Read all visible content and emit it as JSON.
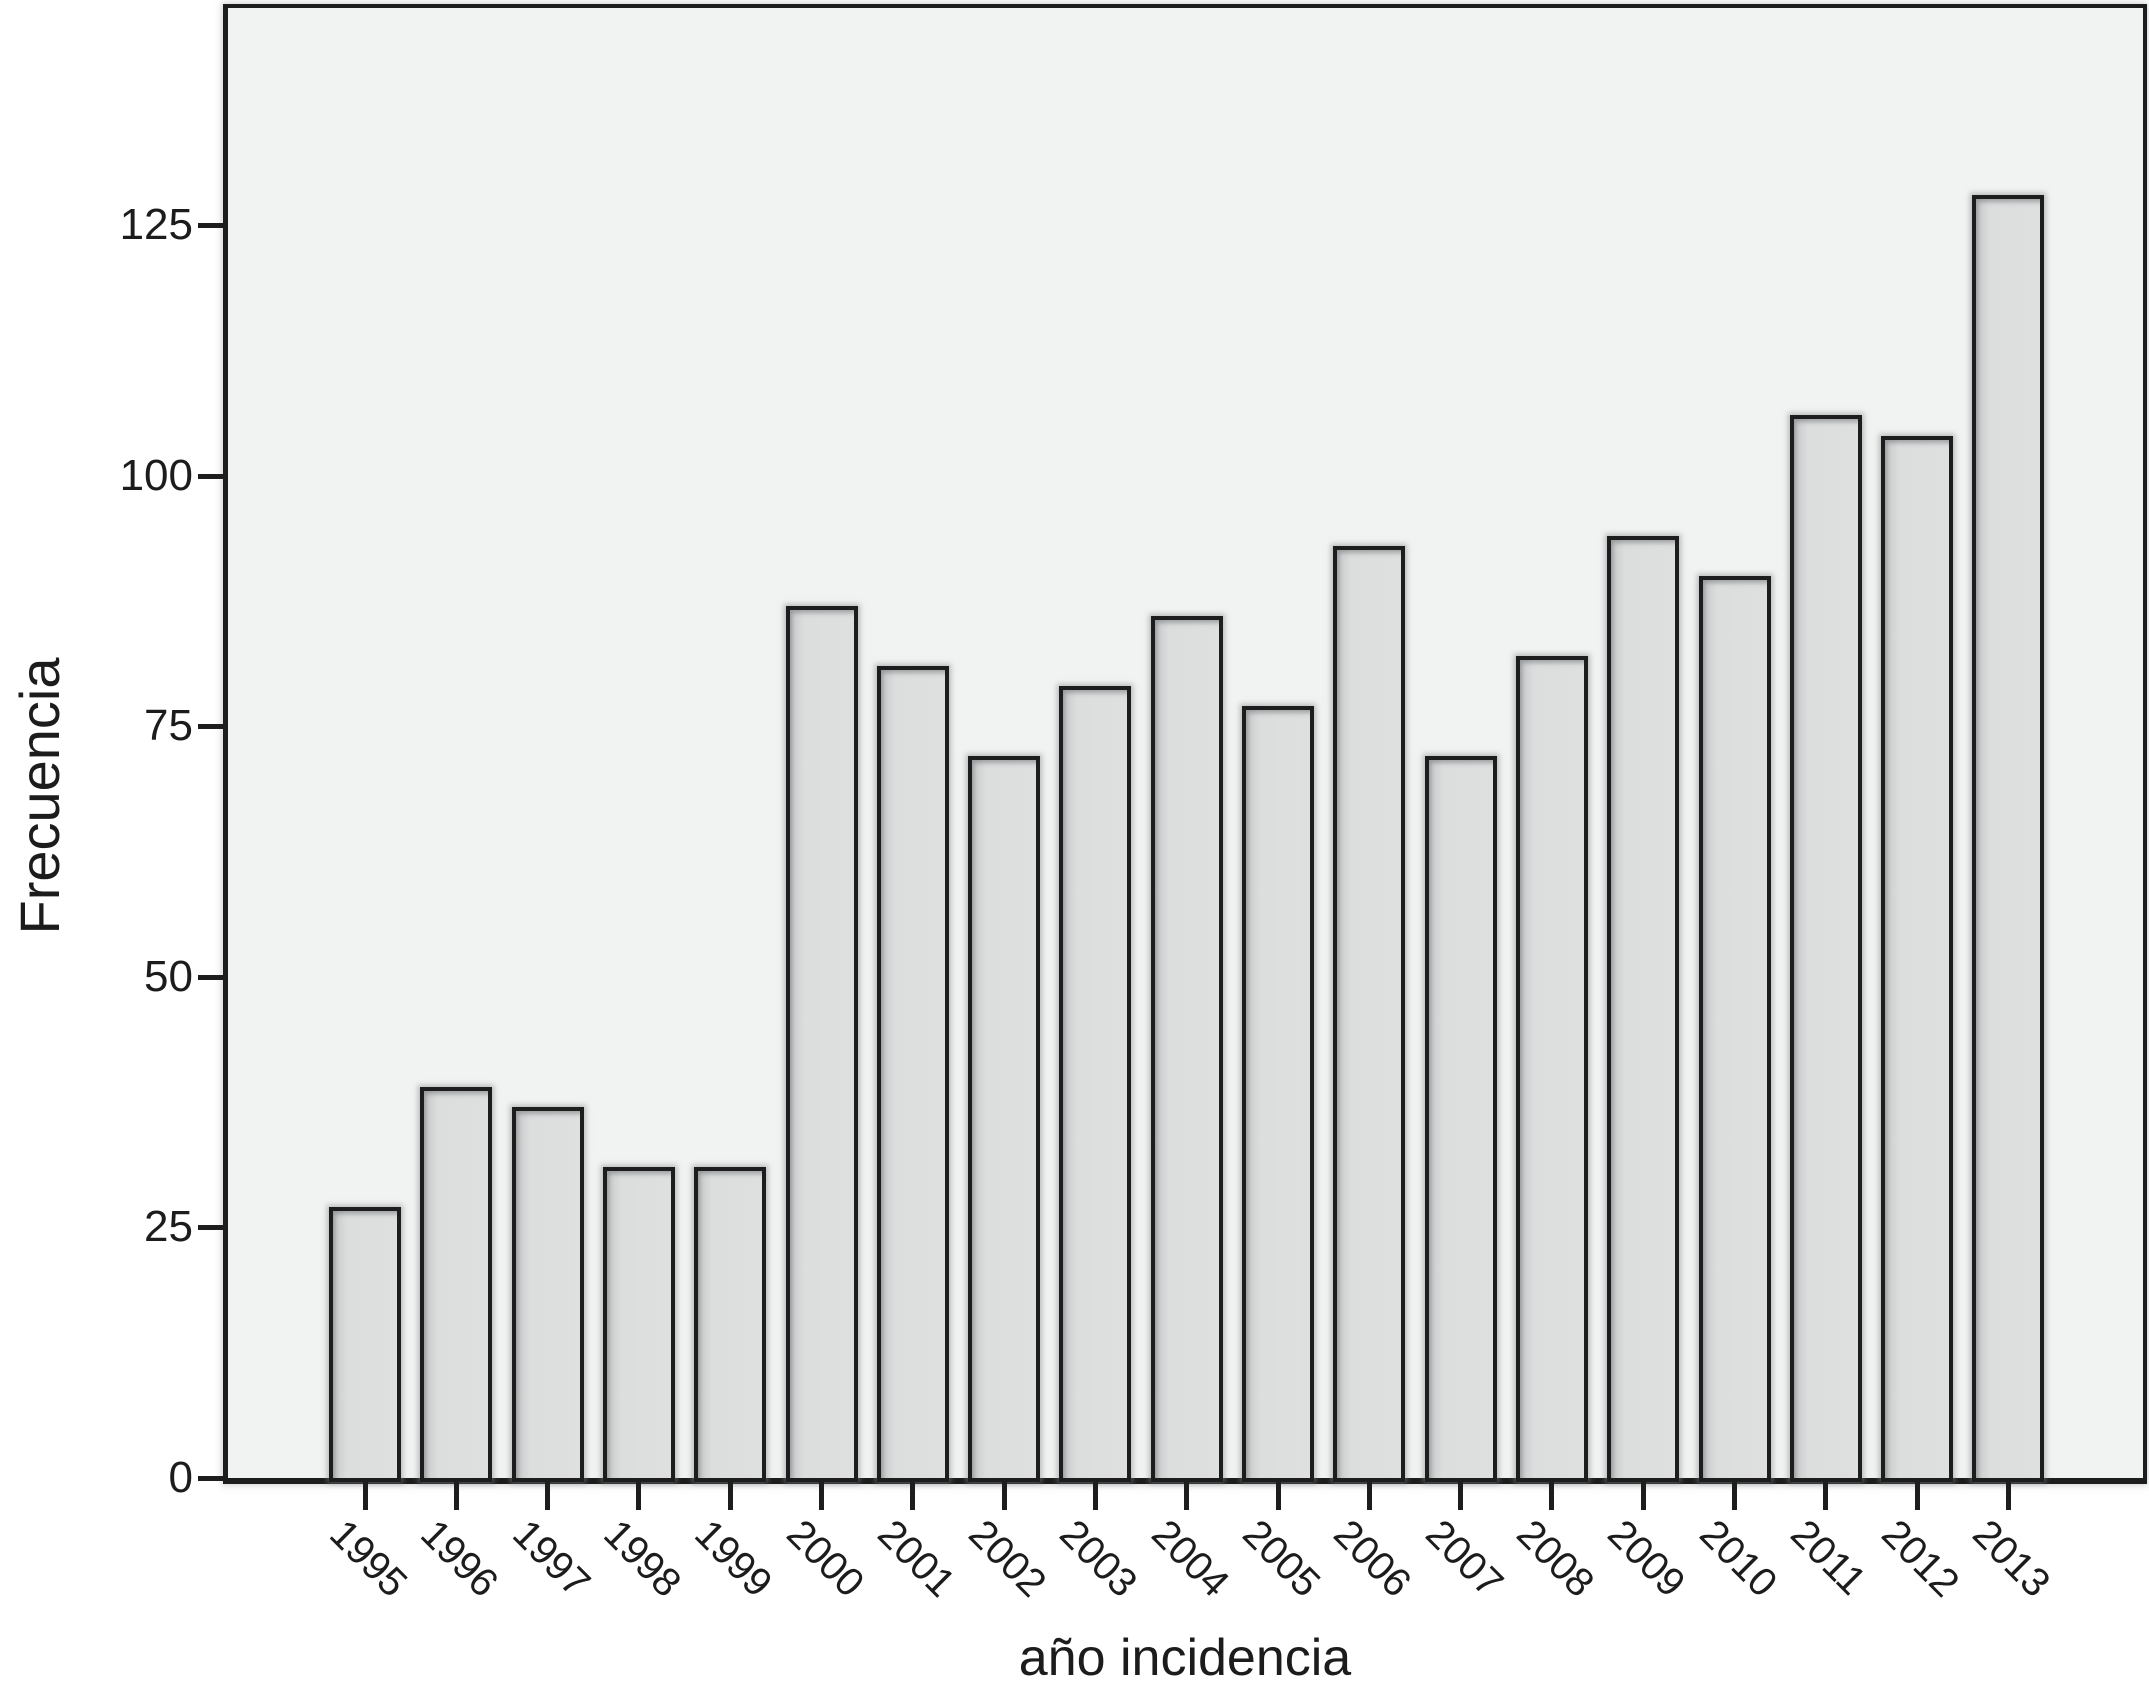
{
  "chart_data": {
    "type": "bar",
    "title": "",
    "xlabel": "año incidencia",
    "ylabel": "Frecuencia",
    "categories": [
      "1995",
      "1996",
      "1997",
      "1998",
      "1999",
      "2000",
      "2001",
      "2002",
      "2003",
      "2004",
      "2005",
      "2006",
      "2007",
      "2008",
      "2009",
      "2010",
      "2011",
      "2012",
      "2013"
    ],
    "values": [
      27,
      39,
      37,
      31,
      31,
      87,
      81,
      72,
      79,
      86,
      77,
      93,
      72,
      82,
      94,
      90,
      106,
      104,
      128
    ],
    "y_ticks": [
      0,
      25,
      50,
      75,
      100,
      125
    ],
    "ylim": [
      0,
      147
    ],
    "grid": false,
    "legend_position": "none",
    "colors": {
      "bar_fill": "#dcdddd",
      "bar_border": "#1d1d1d",
      "plot_background": "#f1f2f2",
      "page_background": "#ffffff",
      "text": "#1c1c1c"
    }
  }
}
